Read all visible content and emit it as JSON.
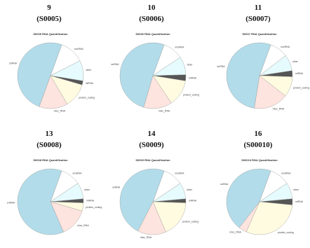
{
  "chart_data": [
    {
      "type": "pie",
      "number": "9",
      "sample": "(S0005)",
      "title": "S0005 RNA Quantification",
      "categories": [
        "snoRNA",
        "other",
        "miRNA",
        "protein_coding",
        "misc_RNA",
        "snRNA"
      ],
      "values": [
        12,
        10,
        2,
        12,
        14,
        50
      ],
      "colors": [
        "#ffffff",
        "#e6fbfd",
        "#555555",
        "#fffbe0",
        "#fde4df",
        "#b2dcea"
      ]
    },
    {
      "type": "pie",
      "number": "10",
      "sample": "(S0006)",
      "title": "S0006 RNA Quantification",
      "categories": [
        "snoRNA",
        "other",
        "miRNA",
        "protein_coding",
        "misc_RNA",
        "snRNA"
      ],
      "values": [
        10,
        9,
        3,
        13,
        14,
        51
      ],
      "colors": [
        "#ffffff",
        "#e6fbfd",
        "#555555",
        "#fffbe0",
        "#fde4df",
        "#b2dcea"
      ]
    },
    {
      "type": "pie",
      "number": "11",
      "sample": "(S0007)",
      "title": "S0007 RNA Quantification",
      "categories": [
        "snoRNA",
        "other",
        "miRNA",
        "protein_coding",
        "misc_RNA",
        "snRNA"
      ],
      "values": [
        9,
        8,
        3,
        10,
        17,
        53
      ],
      "colors": [
        "#ffffff",
        "#e6fbfd",
        "#555555",
        "#fffbe0",
        "#fde4df",
        "#b2dcea"
      ]
    },
    {
      "type": "pie",
      "number": "13",
      "sample": "(S0008)",
      "title": "S0008 RNA Quantification",
      "categories": [
        "snoRNA",
        "other",
        "miRNA",
        "protein_coding",
        "misc_RNA",
        "snRNA"
      ],
      "values": [
        10,
        8,
        2,
        4,
        14,
        62
      ],
      "colors": [
        "#ffffff",
        "#e6fbfd",
        "#555555",
        "#fffbe0",
        "#fde4df",
        "#b2dcea"
      ]
    },
    {
      "type": "pie",
      "number": "14",
      "sample": "(S0009)",
      "title": "S0009 RNA Quantification",
      "categories": [
        "snoRNA",
        "other",
        "miRNA",
        "protein_coding",
        "misc_RNA",
        "snRNA"
      ],
      "values": [
        10,
        8,
        2,
        18,
        14,
        48
      ],
      "colors": [
        "#ffffff",
        "#e6fbfd",
        "#555555",
        "#fffbe0",
        "#fde4df",
        "#b2dcea"
      ]
    },
    {
      "type": "pie",
      "number": "16",
      "sample": "(S00010)",
      "title": "S00010 RNA Quantification",
      "categories": [
        "snoRNA",
        "other",
        "miRNA",
        "protein_coding",
        "misc_RNA",
        "snRNA"
      ],
      "values": [
        10,
        8,
        3,
        30,
        4,
        45
      ],
      "colors": [
        "#ffffff",
        "#e6fbfd",
        "#555555",
        "#fffbe0",
        "#fde4df",
        "#b2dcea"
      ]
    }
  ]
}
